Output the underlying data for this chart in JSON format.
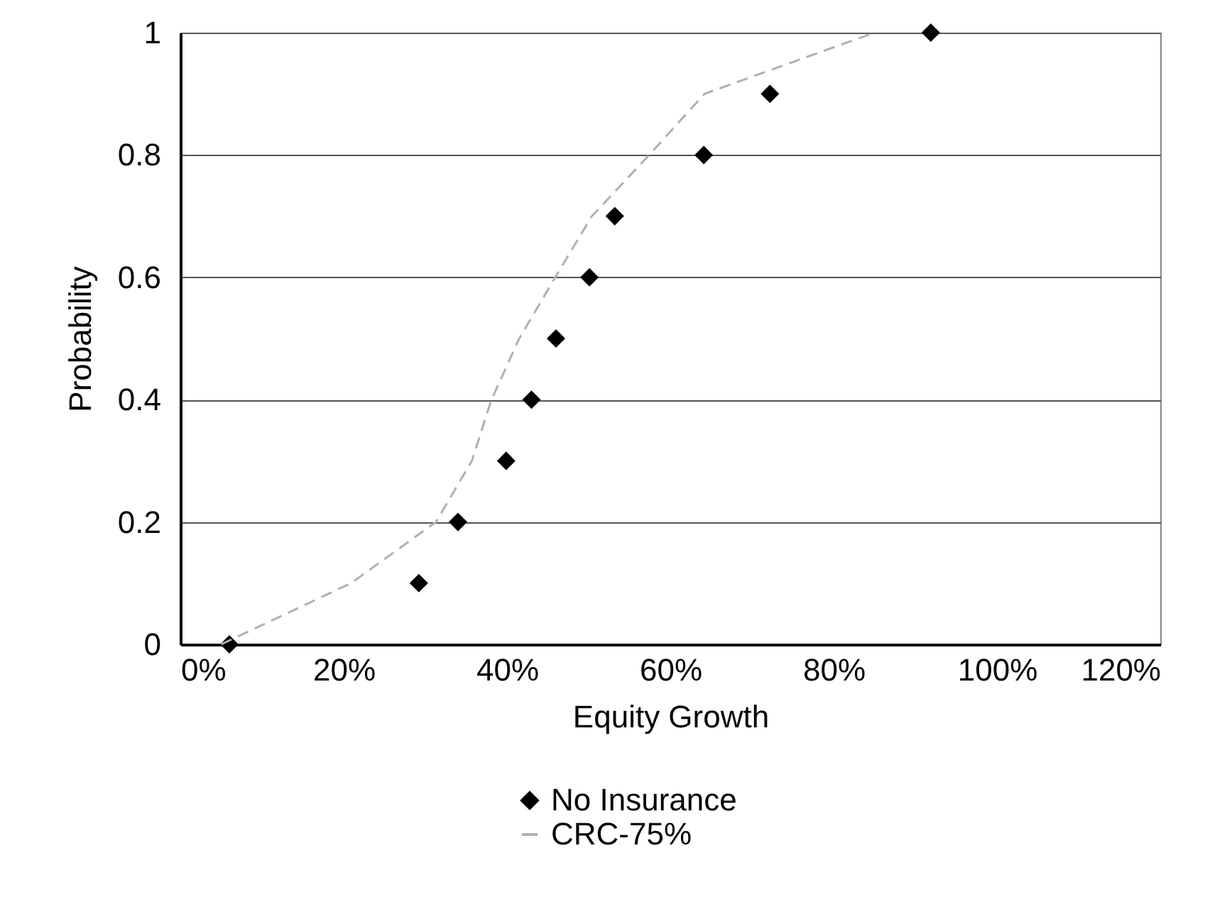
{
  "chart_data": {
    "type": "scatter",
    "xlabel": "Equity Growth",
    "ylabel": "Probability",
    "xlim": [
      0,
      120
    ],
    "xticks": [
      {
        "value": 0,
        "label": "0%"
      },
      {
        "value": 20,
        "label": "20%"
      },
      {
        "value": 40,
        "label": "40%"
      },
      {
        "value": 60,
        "label": "60%"
      },
      {
        "value": 80,
        "label": "80%"
      },
      {
        "value": 100,
        "label": "100%"
      },
      {
        "value": 120,
        "label": "120%"
      }
    ],
    "ylim": [
      0,
      1
    ],
    "yticks": [
      0,
      0.2,
      0.4,
      0.6,
      0.8,
      1
    ],
    "grid": "y",
    "legend": "bottom",
    "series": [
      {
        "name": "No Insurance",
        "marker": "diamond",
        "color": "#000000",
        "x": [
          6,
          29.2,
          34,
          39.9,
          43,
          46,
          50.1,
          53.2,
          64.1,
          72.2,
          91.9
        ],
        "values": [
          0,
          0.1,
          0.2,
          0.3,
          0.4,
          0.5,
          0.6,
          0.7,
          0.8,
          0.9,
          1
        ]
      },
      {
        "name": "CRC-75%",
        "type": "line",
        "marker": "none",
        "line_style": "dashed",
        "color": "#b0b0b0",
        "x": [
          5,
          20.9,
          31.3,
          35.7,
          38.1,
          41.5,
          45.9,
          50.4,
          57.4,
          64.2,
          85
        ],
        "values": [
          0,
          0.1,
          0.2,
          0.3,
          0.4,
          0.5,
          0.6,
          0.7,
          0.8,
          0.9,
          1
        ]
      }
    ]
  }
}
